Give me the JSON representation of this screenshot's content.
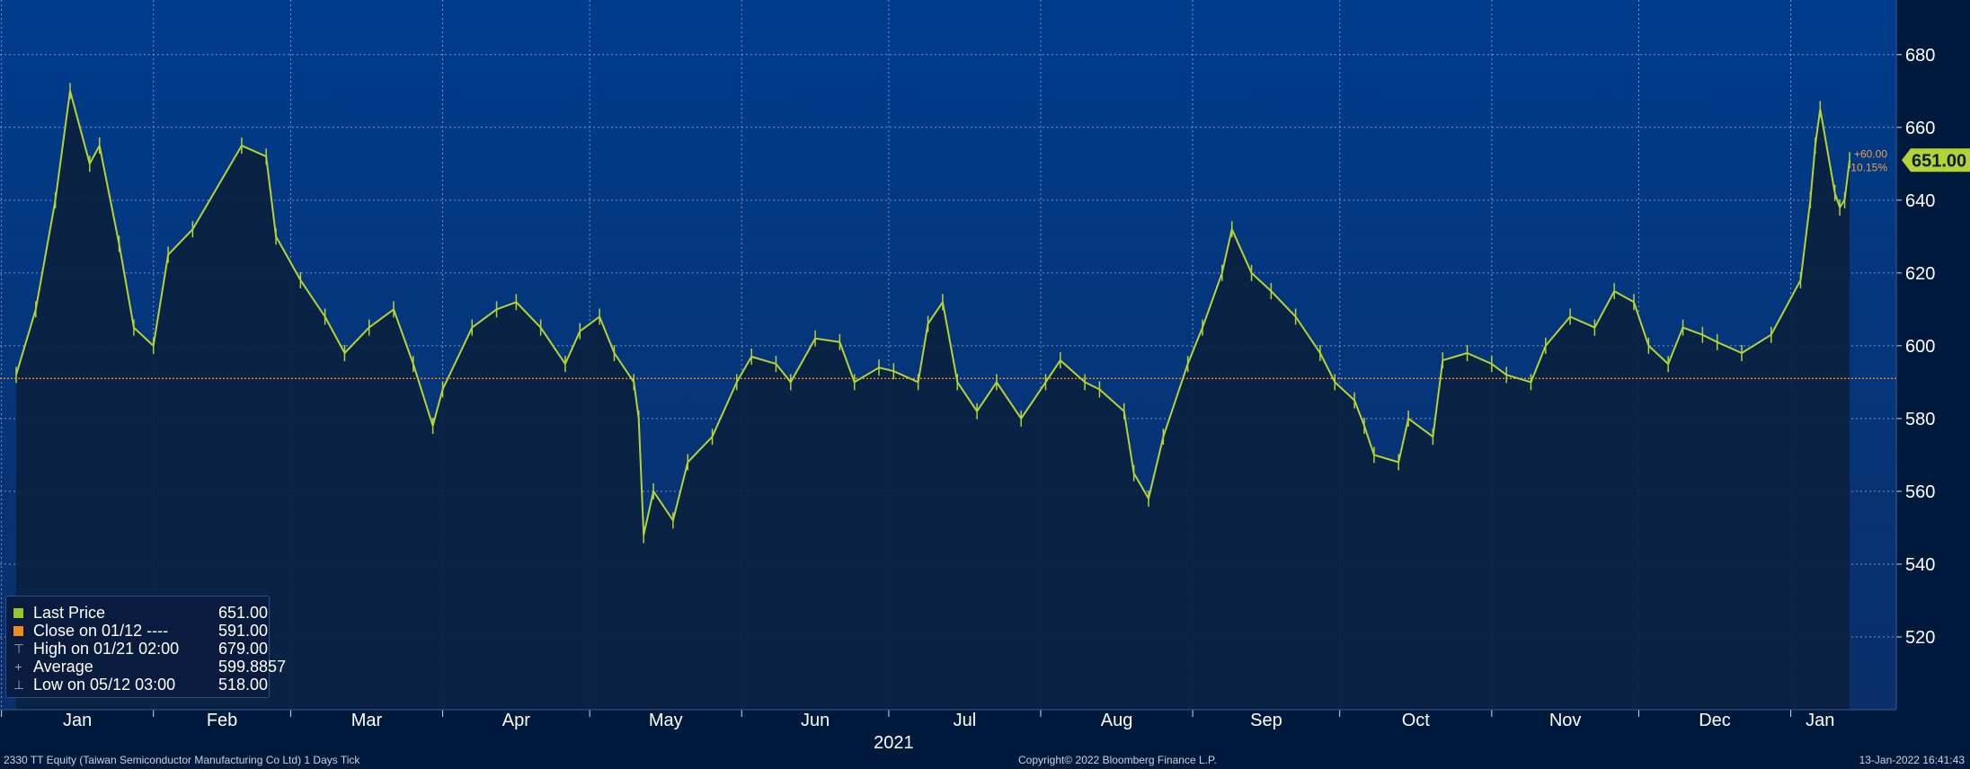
{
  "chart_data": {
    "type": "line",
    "title": "",
    "security": "2330 TT Equity (Taiwan Semiconductor Manufacturing Co Ltd) 1 Days  Tick",
    "x_start": "2021-01-04",
    "x_end": "2022-01-13",
    "month_ticks": [
      {
        "label": "Jan",
        "date": "2021-01-01"
      },
      {
        "label": "Feb",
        "date": "2021-02-01"
      },
      {
        "label": "Mar",
        "date": "2021-03-01"
      },
      {
        "label": "Apr",
        "date": "2021-04-01"
      },
      {
        "label": "May",
        "date": "2021-05-01"
      },
      {
        "label": "Jun",
        "date": "2021-06-01"
      },
      {
        "label": "Jul",
        "date": "2021-07-01"
      },
      {
        "label": "Aug",
        "date": "2021-08-01"
      },
      {
        "label": "Sep",
        "date": "2021-09-01"
      },
      {
        "label": "Oct",
        "date": "2021-10-01"
      },
      {
        "label": "Nov",
        "date": "2021-11-01"
      },
      {
        "label": "Dec",
        "date": "2021-12-01"
      },
      {
        "label": "Jan",
        "date": "2022-01-01"
      }
    ],
    "year_label": "2021",
    "y_ticks": [
      520,
      540,
      560,
      580,
      600,
      620,
      640,
      660,
      680
    ],
    "ylim": [
      500,
      695
    ],
    "grid": true,
    "reference_line": {
      "name": "Close on 01/12",
      "value": 591.0
    },
    "last_price": {
      "value": "651.00",
      "change": "+60.00",
      "change_pct": "10.15%"
    },
    "series": [
      {
        "name": "Last Price",
        "color": "#b5d334",
        "points": [
          [
            "2021-01-04",
            592
          ],
          [
            "2021-01-08",
            610
          ],
          [
            "2021-01-12",
            640
          ],
          [
            "2021-01-15",
            670
          ],
          [
            "2021-01-19",
            650
          ],
          [
            "2021-01-21",
            655
          ],
          [
            "2021-01-25",
            628
          ],
          [
            "2021-01-28",
            605
          ],
          [
            "2021-02-01",
            600
          ],
          [
            "2021-02-04",
            625
          ],
          [
            "2021-02-09",
            632
          ],
          [
            "2021-02-19",
            655
          ],
          [
            "2021-02-24",
            652
          ],
          [
            "2021-02-26",
            630
          ],
          [
            "2021-03-03",
            618
          ],
          [
            "2021-03-08",
            608
          ],
          [
            "2021-03-12",
            598
          ],
          [
            "2021-03-17",
            605
          ],
          [
            "2021-03-22",
            610
          ],
          [
            "2021-03-26",
            595
          ],
          [
            "2021-03-30",
            578
          ],
          [
            "2021-04-01",
            588
          ],
          [
            "2021-04-07",
            605
          ],
          [
            "2021-04-12",
            610
          ],
          [
            "2021-04-16",
            612
          ],
          [
            "2021-04-21",
            605
          ],
          [
            "2021-04-26",
            595
          ],
          [
            "2021-04-29",
            604
          ],
          [
            "2021-05-03",
            608
          ],
          [
            "2021-05-06",
            598
          ],
          [
            "2021-05-10",
            590
          ],
          [
            "2021-05-11",
            580
          ],
          [
            "2021-05-12",
            548
          ],
          [
            "2021-05-14",
            560
          ],
          [
            "2021-05-18",
            552
          ],
          [
            "2021-05-21",
            568
          ],
          [
            "2021-05-26",
            575
          ],
          [
            "2021-05-31",
            590
          ],
          [
            "2021-06-03",
            597
          ],
          [
            "2021-06-08",
            595
          ],
          [
            "2021-06-11",
            590
          ],
          [
            "2021-06-16",
            602
          ],
          [
            "2021-06-21",
            601
          ],
          [
            "2021-06-24",
            590
          ],
          [
            "2021-06-29",
            594
          ],
          [
            "2021-07-02",
            593
          ],
          [
            "2021-07-07",
            590
          ],
          [
            "2021-07-09",
            606
          ],
          [
            "2021-07-12",
            612
          ],
          [
            "2021-07-15",
            590
          ],
          [
            "2021-07-19",
            582
          ],
          [
            "2021-07-23",
            590
          ],
          [
            "2021-07-28",
            580
          ],
          [
            "2021-08-02",
            590
          ],
          [
            "2021-08-05",
            596
          ],
          [
            "2021-08-10",
            590
          ],
          [
            "2021-08-13",
            588
          ],
          [
            "2021-08-18",
            582
          ],
          [
            "2021-08-20",
            565
          ],
          [
            "2021-08-23",
            558
          ],
          [
            "2021-08-26",
            575
          ],
          [
            "2021-08-31",
            595
          ],
          [
            "2021-09-03",
            605
          ],
          [
            "2021-09-07",
            620
          ],
          [
            "2021-09-09",
            632
          ],
          [
            "2021-09-13",
            620
          ],
          [
            "2021-09-17",
            615
          ],
          [
            "2021-09-22",
            608
          ],
          [
            "2021-09-27",
            598
          ],
          [
            "2021-09-30",
            590
          ],
          [
            "2021-10-04",
            585
          ],
          [
            "2021-10-06",
            578
          ],
          [
            "2021-10-08",
            570
          ],
          [
            "2021-10-13",
            568
          ],
          [
            "2021-10-15",
            580
          ],
          [
            "2021-10-20",
            575
          ],
          [
            "2021-10-22",
            596
          ],
          [
            "2021-10-27",
            598
          ],
          [
            "2021-11-01",
            595
          ],
          [
            "2021-11-04",
            592
          ],
          [
            "2021-11-09",
            590
          ],
          [
            "2021-11-12",
            600
          ],
          [
            "2021-11-17",
            608
          ],
          [
            "2021-11-22",
            605
          ],
          [
            "2021-11-26",
            615
          ],
          [
            "2021-11-30",
            612
          ],
          [
            "2021-12-03",
            600
          ],
          [
            "2021-12-07",
            595
          ],
          [
            "2021-12-10",
            605
          ],
          [
            "2021-12-14",
            603
          ],
          [
            "2021-12-17",
            601
          ],
          [
            "2021-12-22",
            598
          ],
          [
            "2021-12-28",
            603
          ],
          [
            "2022-01-03",
            618
          ],
          [
            "2022-01-05",
            640
          ],
          [
            "2022-01-06",
            655
          ],
          [
            "2022-01-07",
            665
          ],
          [
            "2022-01-10",
            642
          ],
          [
            "2022-01-11",
            638
          ],
          [
            "2022-01-12",
            640
          ],
          [
            "2022-01-13",
            651
          ]
        ]
      }
    ],
    "legend_position": "bottom-left"
  },
  "legend": [
    {
      "label": "Last Price",
      "value": "651.00",
      "color": "#9ac52a",
      "glyph": "square"
    },
    {
      "label": "Close on 01/12 ----",
      "value": "591.00",
      "color": "#f08c1d",
      "glyph": "square"
    },
    {
      "label": "High on 01/21 02:00",
      "value": "679.00",
      "glyph": "high-marker"
    },
    {
      "label": "Average",
      "value": "599.8857",
      "glyph": "average-marker"
    },
    {
      "label": "Low on 05/12 03:00",
      "value": "518.00",
      "glyph": "low-marker"
    }
  ],
  "footer": {
    "left": "2330 TT Equity (Taiwan Semiconductor Manufacturing Co Ltd) 1 Days  Tick",
    "center": "Copyright© 2022 Bloomberg Finance L.P.",
    "right": "13-Jan-2022 16:41:43"
  },
  "colors": {
    "background_top": "#003c8c",
    "background_bottom": "#001a3d",
    "area_fill": "#0b2240",
    "price_line": "#b5d334",
    "reference_line": "#f08c1d",
    "last_price_tag": "#b5d334"
  }
}
